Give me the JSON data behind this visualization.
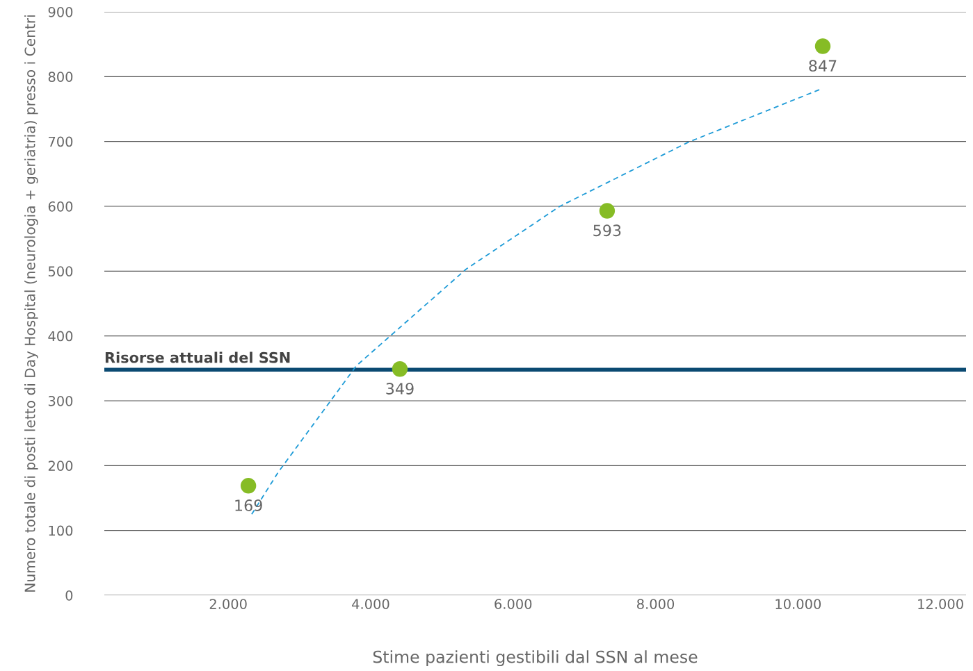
{
  "chart_data": {
    "type": "scatter",
    "xlabel": "Stime pazienti gestibili dal SSN al mese",
    "ylabel": "Numero totale di posti letto di Day Hospital (neurologia + geriatria) presso i Centri",
    "series": [
      {
        "color": "#86bc25",
        "x": [
          2283,
          4410,
          7320,
          10348
        ],
        "values": [
          169,
          349,
          593,
          847
        ],
        "value_labels": [
          "169",
          "349",
          "593",
          "847"
        ]
      },
      {
        "type": "line",
        "color": "#1e9bd7",
        "line_style": "dashed",
        "marker": "none",
        "x": [
          2330,
          2703,
          3799,
          5340,
          6656,
          8463,
          10348
        ],
        "values": [
          125,
          190,
          354,
          503,
          600,
          699,
          782
        ]
      }
    ],
    "ref_lines": [
      {
        "axis": "y",
        "value": 348,
        "label": "Risorse attuali del SSN",
        "color": "#0b4a72"
      }
    ],
    "xlim": [
      260,
      12360
    ],
    "ylim": [
      0,
      900
    ],
    "xticks": [
      {
        "value": 2000,
        "label": "2.000"
      },
      {
        "value": 4000,
        "label": "4.000"
      },
      {
        "value": 6000,
        "label": "6.000"
      },
      {
        "value": 8000,
        "label": "8.000"
      },
      {
        "value": 10000,
        "label": "10.000"
      },
      {
        "value": 12000,
        "label": "12.000"
      }
    ],
    "yticks": [
      0,
      100,
      200,
      300,
      400,
      500,
      600,
      700,
      800,
      900
    ],
    "grid": "y",
    "legend": false
  }
}
